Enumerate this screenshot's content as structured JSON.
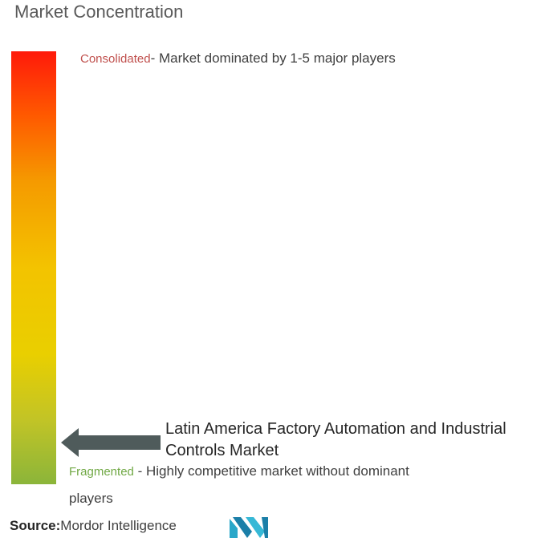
{
  "chart_data": {
    "type": "gradient-scale",
    "title": "Market Concentration",
    "scale_top": {
      "label": "Consolidated",
      "description": "- Market dominated by 1-5 major players"
    },
    "scale_bottom": {
      "label": "Fragmented",
      "description": " - Highly competitive market without dominant",
      "description_cont": "players"
    },
    "marker": {
      "label": "Latin America Factory Automation and Industrial Controls Market",
      "position": "near fragmented end"
    },
    "colors": {
      "top": "#ff1a0a",
      "middle": "#f3c300",
      "bottom": "#8bb53a",
      "consolidated_text": "#c0504d",
      "fragmented_text": "#70a844",
      "arrow": "#4f5b5b"
    }
  },
  "source": {
    "label": "Source:",
    "value": "Mordor Intelligence"
  },
  "logo": {
    "icon": "mordor-intelligence-logo"
  }
}
